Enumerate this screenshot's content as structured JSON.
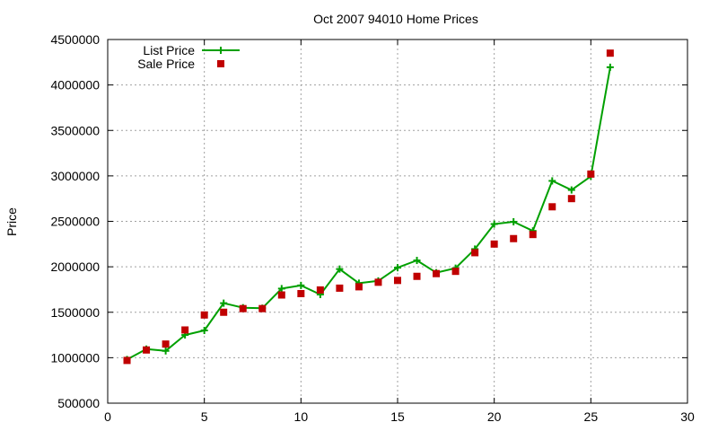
{
  "chart_data": {
    "type": "line",
    "title": "Oct 2007 94010 Home Prices",
    "xlabel": "",
    "ylabel": "Price",
    "xlim": [
      0,
      30
    ],
    "ylim": [
      500000,
      4500000
    ],
    "x_ticks": [
      "0",
      "5",
      "10",
      "15",
      "20",
      "25",
      "30"
    ],
    "y_ticks": [
      "500000",
      "1000000",
      "1500000",
      "2000000",
      "2500000",
      "3000000",
      "3500000",
      "4000000",
      "4500000"
    ],
    "grid": true,
    "legend_position": "top-left",
    "x": [
      1,
      2,
      3,
      4,
      5,
      6,
      7,
      8,
      9,
      10,
      11,
      12,
      13,
      14,
      15,
      16,
      17,
      18,
      19,
      20,
      21,
      22,
      23,
      24,
      25,
      26
    ],
    "series": [
      {
        "name": "List Price",
        "style": "line-with-plus-markers",
        "color": "#00a000",
        "values": [
          980000,
          1095000,
          1075000,
          1250000,
          1300000,
          1600000,
          1550000,
          1545000,
          1760000,
          1795000,
          1695000,
          1975000,
          1820000,
          1845000,
          1990000,
          2070000,
          1935000,
          1985000,
          2195000,
          2470000,
          2495000,
          2395000,
          2945000,
          2845000,
          2995000,
          4195000
        ]
      },
      {
        "name": "Sale Price",
        "style": "square-points",
        "color": "#c00000",
        "values": [
          970000,
          1085000,
          1150000,
          1305000,
          1470000,
          1500000,
          1540000,
          1540000,
          1690000,
          1705000,
          1745000,
          1765000,
          1780000,
          1830000,
          1850000,
          1895000,
          1925000,
          1950000,
          2155000,
          2250000,
          2310000,
          2355000,
          2660000,
          2750000,
          3020000,
          4350000
        ]
      }
    ]
  }
}
